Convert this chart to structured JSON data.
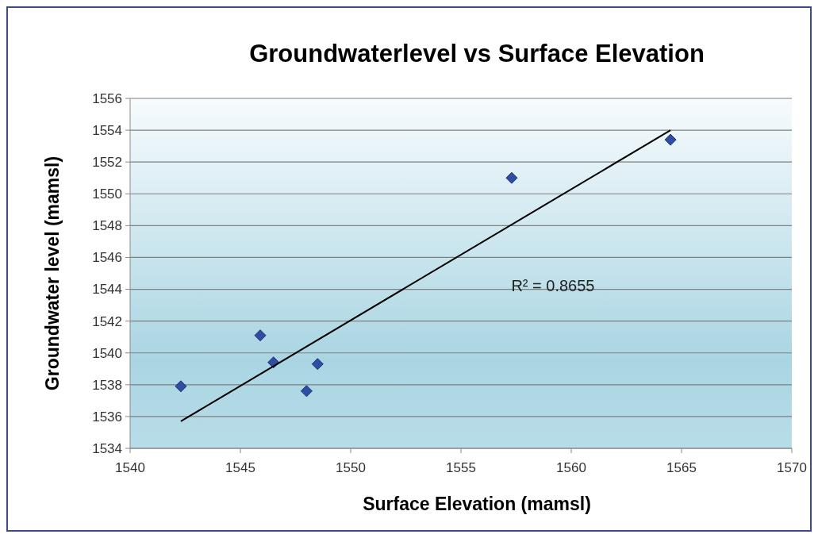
{
  "chart_data": {
    "type": "scatter",
    "title": "Groundwaterlevel vs Surface Elevation",
    "xlabel": "Surface Elevation (mamsl)",
    "ylabel": "Groundwater level (mamsl)",
    "x": [
      1542.3,
      1545.9,
      1546.5,
      1548.0,
      1548.5,
      1557.3,
      1564.5
    ],
    "series": [
      {
        "color": "#2f4ea3",
        "values": [
          1537.9,
          1541.1,
          1539.4,
          1537.6,
          1539.3,
          1551.0,
          1553.4
        ],
        "marker": "diamond"
      },
      {
        "type": "line",
        "color": "#000000",
        "x": [
          1542.3,
          1564.5
        ],
        "values": [
          1535.7,
          1554.0
        ],
        "marker": "none"
      }
    ],
    "xlim": [
      1540,
      1570
    ],
    "xticks": [
      1540,
      1545,
      1550,
      1555,
      1560,
      1565,
      1570
    ],
    "ylim": [
      1534,
      1556
    ],
    "yticks": [
      1534,
      1536,
      1538,
      1540,
      1542,
      1544,
      1546,
      1548,
      1550,
      1552,
      1554,
      1556
    ],
    "grid": "y",
    "annotations": [
      "R² = 0.8655"
    ]
  }
}
